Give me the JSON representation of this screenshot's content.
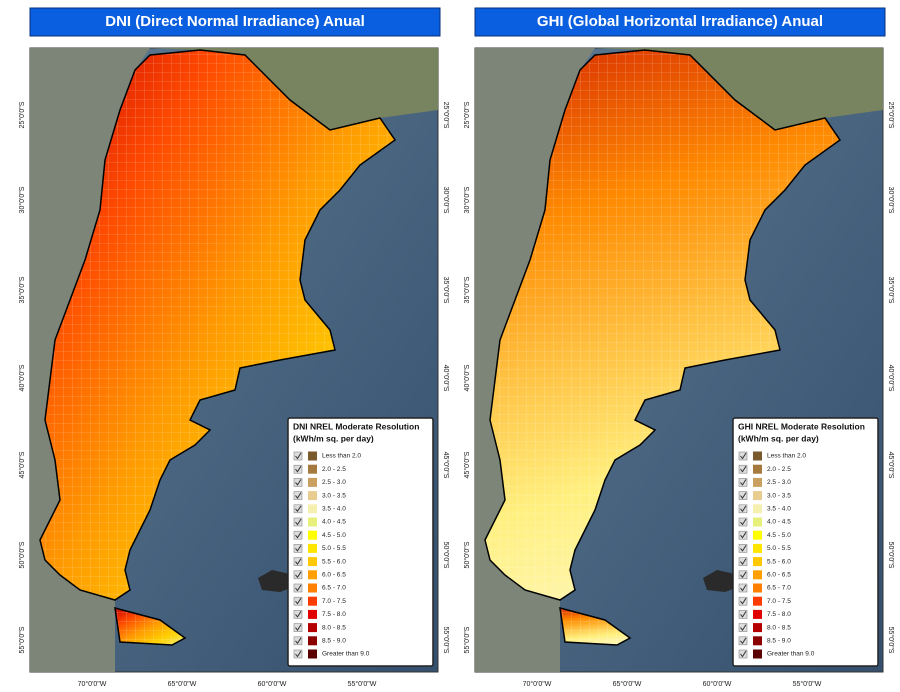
{
  "panels": [
    {
      "title": "DNI (Direct Normal Irradiance) Anual",
      "legend": {
        "title": "DNI NREL Moderate Resolution",
        "units": "(kWh/m sq. per day)"
      },
      "gradient": [
        "#c80000",
        "#ff4a00",
        "#ff9a00",
        "#ffd000",
        "#eef27a"
      ]
    },
    {
      "title": "GHI (Global Horizontal Irradiance) Anual",
      "legend": {
        "title": "GHI NREL Moderate Resolution",
        "units": "(kWh/m sq. per day)"
      },
      "gradient": [
        "#e04000",
        "#ff8a00",
        "#ffc040",
        "#fff080",
        "#fff6b8"
      ]
    }
  ],
  "legend_items": [
    {
      "label": "Less than 2.0",
      "color": "#7a5a2c"
    },
    {
      "label": "2.0 - 2.5",
      "color": "#a47a3e"
    },
    {
      "label": "2.5 - 3.0",
      "color": "#c9a060"
    },
    {
      "label": "3.0 - 3.5",
      "color": "#e8cc90"
    },
    {
      "label": "3.5 - 4.0",
      "color": "#f6f0b0"
    },
    {
      "label": "4.0 - 4.5",
      "color": "#e6f07a"
    },
    {
      "label": "4.5 - 5.0",
      "color": "#ffff00"
    },
    {
      "label": "5.0 - 5.5",
      "color": "#ffe600"
    },
    {
      "label": "5.5 - 6.0",
      "color": "#ffc800"
    },
    {
      "label": "6.0 - 6.5",
      "color": "#ffa000"
    },
    {
      "label": "6.5 - 7.0",
      "color": "#ff7f00"
    },
    {
      "label": "7.0 - 7.5",
      "color": "#ff3c00"
    },
    {
      "label": "7.5 - 8.0",
      "color": "#e00000"
    },
    {
      "label": "8.0 - 8.5",
      "color": "#b40000"
    },
    {
      "label": "8.5 - 9.0",
      "color": "#8a0000"
    },
    {
      "label": "Greater than 9.0",
      "color": "#5a0000"
    }
  ],
  "latitude_labels": [
    "25°0'0\"S",
    "30°0'0\"S",
    "35°0'0\"S",
    "40°0'0\"S",
    "45°0'0\"S",
    "50°0'0\"S",
    "55°0'0\"S"
  ],
  "longitude_labels": [
    "70°0'0\"W",
    "65°0'0\"W",
    "60°0'0\"W",
    "55°0'0\"W"
  ]
}
